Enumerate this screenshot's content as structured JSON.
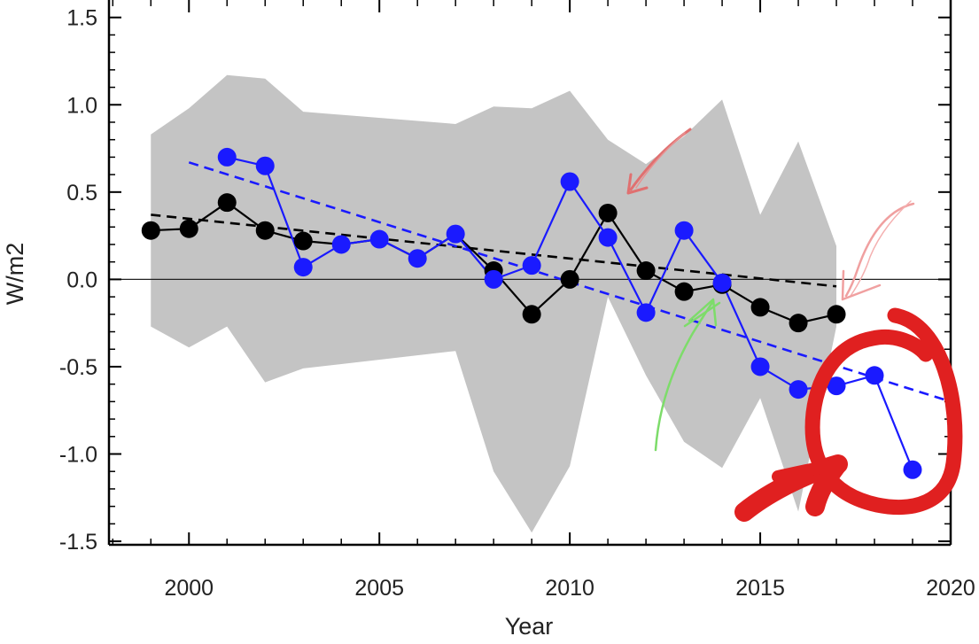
{
  "chart_data": {
    "type": "line",
    "title": "",
    "xlabel": "Year",
    "ylabel": "W/m2",
    "xlim": [
      1997.9,
      2020
    ],
    "ylim": [
      -1.52,
      1.6
    ],
    "x_ticks": [
      2000,
      2005,
      2010,
      2015,
      2020
    ],
    "x_tick_labels": [
      "2000",
      "2005",
      "2010",
      "2015",
      "2020"
    ],
    "y_ticks": [
      1.5,
      1.0,
      0.5,
      0.0,
      -0.5,
      -1.0,
      -1.5
    ],
    "y_tick_labels": [
      "1.5",
      "1.0",
      "0.5",
      "0.0",
      "-0.5",
      "-1.0",
      "-1.5"
    ],
    "zero_line": 0,
    "grid": false,
    "uncertainty_band": {
      "color": "#c4c4c4",
      "x": [
        1999,
        2000,
        2001,
        2002,
        2003,
        2007,
        2008,
        2009,
        2010,
        2011,
        2012,
        2013,
        2014,
        2015,
        2016,
        2017
      ],
      "upper": [
        0.83,
        0.98,
        1.17,
        1.15,
        0.96,
        0.89,
        0.99,
        0.98,
        1.08,
        0.8,
        0.66,
        0.82,
        1.03,
        0.37,
        0.79,
        0.19
      ],
      "lower": [
        -0.27,
        -0.39,
        -0.27,
        -0.59,
        -0.51,
        -0.41,
        -1.1,
        -1.45,
        -1.07,
        -0.1,
        -0.55,
        -0.93,
        -1.08,
        -0.68,
        -1.33,
        -0.27
      ]
    },
    "series": [
      {
        "color": "#000000",
        "x": [
          1999,
          2000,
          2001,
          2002,
          2003,
          2004,
          2005,
          2006,
          2007,
          2008,
          2009,
          2010,
          2011,
          2012,
          2013,
          2014,
          2015,
          2016,
          2017
        ],
        "values": [
          0.28,
          0.29,
          0.44,
          0.28,
          0.22,
          0.2,
          0.23,
          0.12,
          0.26,
          0.05,
          -0.2,
          0.0,
          0.38,
          0.05,
          -0.07,
          -0.03,
          -0.16,
          -0.25,
          -0.2
        ],
        "visible_points": [
          0,
          1,
          2,
          3,
          4,
          9,
          10,
          11,
          12,
          13,
          14,
          15,
          16,
          17,
          18
        ],
        "trend": {
          "x": [
            1999,
            2017
          ],
          "y": [
            0.37,
            -0.04
          ]
        }
      },
      {
        "color": "#1a1aff",
        "x": [
          2001,
          2002,
          2003,
          2004,
          2005,
          2006,
          2007,
          2008,
          2009,
          2010,
          2011,
          2012,
          2013,
          2014,
          2015,
          2016,
          2017,
          2018,
          2019
        ],
        "values": [
          0.7,
          0.65,
          0.07,
          0.2,
          0.23,
          0.12,
          0.26,
          0.0,
          0.08,
          0.56,
          0.24,
          -0.19,
          0.28,
          -0.02,
          -0.5,
          -0.63,
          -0.61,
          -0.55,
          -1.09
        ],
        "visible_points": [
          0,
          1,
          2,
          3,
          4,
          5,
          6,
          7,
          8,
          9,
          10,
          11,
          12,
          13,
          14,
          15,
          16,
          17,
          18
        ],
        "trend": {
          "x": [
            2000,
            2020
          ],
          "y": [
            0.67,
            -0.7
          ]
        }
      }
    ],
    "annotations": [
      {
        "type": "hand-drawn-arrow",
        "color": "#e07070"
      },
      {
        "type": "hand-drawn-arrow",
        "color": "#f0a0a0"
      },
      {
        "type": "hand-drawn-arrow",
        "color": "#7ddc6a"
      },
      {
        "type": "hand-drawn-circle",
        "color": "#e02020"
      }
    ]
  }
}
